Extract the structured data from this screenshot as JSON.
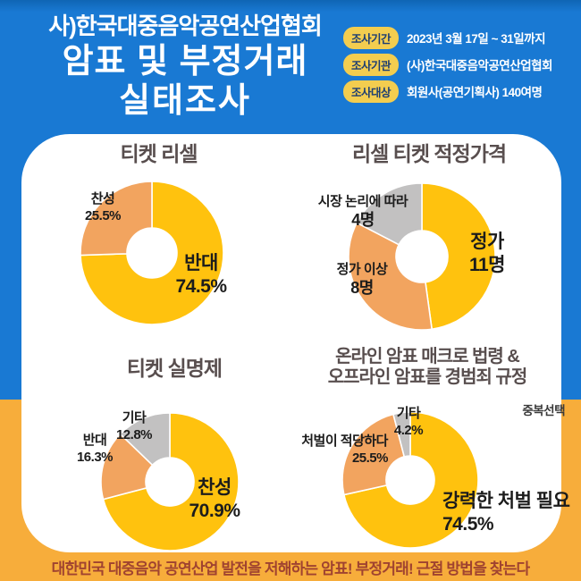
{
  "header": {
    "org": "사)한국대중음악공연산업협회",
    "title_line1": "암표 및 부정거래",
    "title_line2": "실태조사",
    "info": [
      {
        "label": "조사기간",
        "value": "2023년 3월 17일 ~ 31일까지"
      },
      {
        "label": "조사기관",
        "value": "(사)한국대중음악공연산업협회"
      },
      {
        "label": "조사대상",
        "value": "회원사(공연기획사) 140여명"
      }
    ]
  },
  "footer": {
    "text": "대한민국 대중음악 공연산업 발전을 저해하는 암표! 부정거래! 근절 방법을 찾는다"
  },
  "colors": {
    "background_blue": "#1979D3",
    "background_yellow": "#F7AD3B",
    "badge_yellow": "#F3CD4F",
    "badge_text_navy": "#1D3E73",
    "donut_gold": "#FFC20E",
    "donut_orange": "#F2A45F",
    "donut_gray": "#C2C1C1",
    "chart_title_gray": "#584E4E",
    "footer_text": "#A04330"
  },
  "chart_data": [
    {
      "type": "donut",
      "title": "티켓 리셀",
      "unit": "%",
      "start": "top",
      "direction": "clockwise",
      "segments": [
        {
          "label": "반대",
          "value": 74.5,
          "display": "74.5%",
          "color": "#FFC20E"
        },
        {
          "label": "찬성",
          "value": 25.5,
          "display": "25.5%",
          "color": "#F2A45F"
        }
      ]
    },
    {
      "type": "donut",
      "title": "리셀 티켓 적정가격",
      "unit": "명",
      "start": "top",
      "direction": "clockwise",
      "segments": [
        {
          "label": "정가",
          "value": 11,
          "display": "11명",
          "color": "#FFC20E"
        },
        {
          "label": "정가 이상",
          "value": 8,
          "display": "8명",
          "color": "#F2A45F"
        },
        {
          "label": "시장 논리에 따라",
          "value": 4,
          "display": "4명",
          "color": "#C2C1C1"
        }
      ]
    },
    {
      "type": "donut",
      "title": "티켓 실명제",
      "unit": "%",
      "start": "top",
      "direction": "clockwise",
      "segments": [
        {
          "label": "찬성",
          "value": 70.9,
          "display": "70.9%",
          "color": "#FFC20E"
        },
        {
          "label": "반대",
          "value": 16.3,
          "display": "16.3%",
          "color": "#F2A45F"
        },
        {
          "label": "기타",
          "value": 12.8,
          "display": "12.8%",
          "color": "#C2C1C1"
        }
      ]
    },
    {
      "type": "donut",
      "title": "온라인 암표 매크로 법령 &\n오프라인 암표를 경범죄 규정",
      "unit": "%",
      "note": "중복선택",
      "start": "top",
      "direction": "clockwise",
      "segments": [
        {
          "label": "강력한 처벌 필요",
          "value": 74.5,
          "display": "74.5%",
          "color": "#FFC20E"
        },
        {
          "label": "처벌이 적당하다",
          "value": 25.5,
          "display": "25.5%",
          "color": "#F2A45F"
        },
        {
          "label": "기타",
          "value": 4.2,
          "display": "4.2%",
          "color": "#C2C1C1"
        }
      ]
    }
  ]
}
